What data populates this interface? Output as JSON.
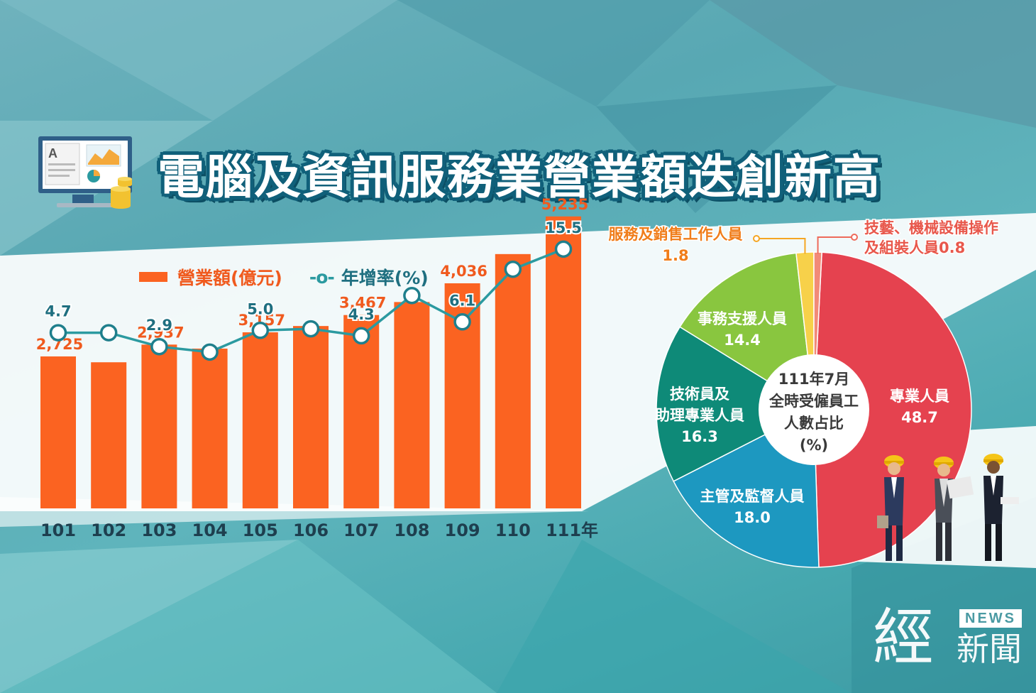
{
  "title": "電腦及資訊服務業營業額迭創新高",
  "legend": {
    "bar_label": "營業額(億元)",
    "line_marker": "-o-",
    "line_label": "年增率(%)"
  },
  "colors": {
    "bar": "#fb6321",
    "line": "#2b9aa0",
    "pie_professional": "#e5424f",
    "pie_managers": "#1d98c0",
    "pie_technicians": "#0e8a78",
    "pie_clerical": "#89c63f",
    "pie_sales": "#f7d14a",
    "pie_craft": "#f28a78"
  },
  "chart_data": [
    {
      "type": "bar",
      "title": "",
      "xlabel": "",
      "ylabel": "",
      "categories": [
        "101",
        "102",
        "103",
        "104",
        "105",
        "106",
        "107",
        "108",
        "109",
        "110",
        "111年"
      ],
      "series": [
        {
          "name": "營業額(億元)",
          "values": [
            2725,
            2620,
            2937,
            2865,
            3157,
            3270,
            3467,
            3700,
            4036,
            4560,
            5235
          ],
          "data_labels": [
            "2,725",
            "",
            "2,937",
            "",
            "3,157",
            "",
            "3,467",
            "",
            "4,036",
            "",
            "5,235"
          ]
        },
        {
          "name": "年增率(%)",
          "type": "line",
          "values": [
            4.7,
            4.7,
            2.9,
            2.2,
            5.0,
            5.2,
            4.3,
            9.5,
            6.1,
            12.9,
            15.5
          ],
          "data_labels": [
            "4.7",
            "",
            "2.9",
            "",
            "5.0",
            "",
            "4.3",
            "",
            "6.1",
            "",
            "15.5"
          ]
        }
      ],
      "ylim": [
        0,
        5500
      ],
      "y2lim": [
        -18,
        22
      ],
      "grid": false,
      "legend_position": "top-left"
    },
    {
      "type": "pie",
      "title": "111年7月全時受僱員工人數占比(%)",
      "center_label": [
        "111年7月",
        "全時受僱員工",
        "人數占比",
        "(%)"
      ],
      "slices": [
        {
          "label": "專業人員",
          "value": 48.7,
          "text": "48.7",
          "color": "#e5424f"
        },
        {
          "label": "主管及監督人員",
          "value": 18.0,
          "text": "18.0",
          "color": "#1d98c0"
        },
        {
          "label": "技術員及助理專業人員",
          "value": 16.3,
          "text": "16.3",
          "color": "#0e8a78",
          "label_lines": [
            "技術員及",
            "助理專業人員"
          ]
        },
        {
          "label": "事務支援人員",
          "value": 14.4,
          "text": "14.4",
          "color": "#89c63f"
        },
        {
          "label": "服務及銷售工作人員",
          "value": 1.8,
          "text": "1.8",
          "color": "#f7d14a",
          "callout": true
        },
        {
          "label": "技藝、機械設備操作及組裝人員",
          "value": 0.8,
          "text": "0.8",
          "color": "#f28a78",
          "callout": true,
          "callout_lines": [
            "技藝、機械設備操作",
            "及組裝人員0.8"
          ]
        }
      ]
    }
  ],
  "watermark": {
    "news": "NEWS",
    "main": "經",
    "sub": "新聞"
  }
}
